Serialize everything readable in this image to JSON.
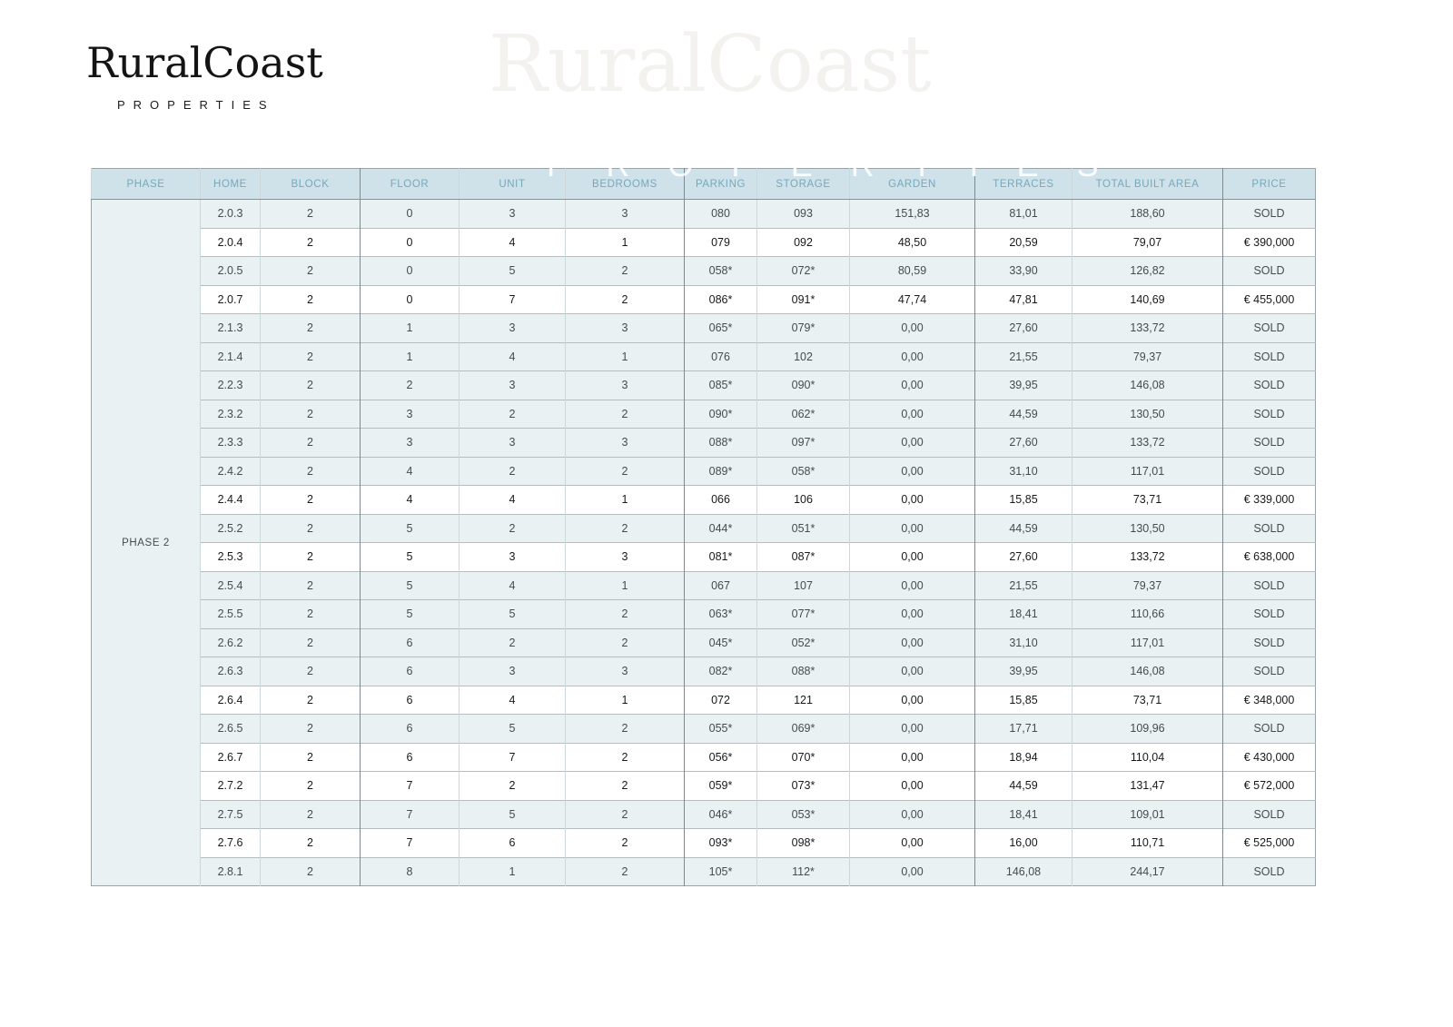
{
  "logo": {
    "name": "RuralCoast",
    "tagline": "PROPERTIES"
  },
  "watermark": {
    "name": "RuralCoast",
    "tagline": "PROPERTIES"
  },
  "colors": {
    "header_bg": "#cfe1e9",
    "header_text": "#74a9bd",
    "sold_row_bg": "#e9f1f3",
    "available_row_bg": "#ffffff",
    "accent_teal": "#7cb2c1"
  },
  "table": {
    "phase_label": "PHASE 2",
    "columns": [
      "PHASE",
      "HOME",
      "BLOCK",
      "FLOOR",
      "UNIT",
      "BEDROOMS",
      "PARKING",
      "STORAGE",
      "GARDEN",
      "TERRACES",
      "TOTAL BUILT AREA",
      "PRICE"
    ],
    "rows": [
      {
        "home": "2.0.3",
        "block": "2",
        "floor": "0",
        "unit": "3",
        "bedrooms": "3",
        "parking": "080",
        "storage": "093",
        "garden": "151,83",
        "terraces": "81,01",
        "total_built_area": "188,60",
        "price": "SOLD"
      },
      {
        "home": "2.0.4",
        "block": "2",
        "floor": "0",
        "unit": "4",
        "bedrooms": "1",
        "parking": "079",
        "storage": "092",
        "garden": "48,50",
        "terraces": "20,59",
        "total_built_area": "79,07",
        "price": "€ 390,000"
      },
      {
        "home": "2.0.5",
        "block": "2",
        "floor": "0",
        "unit": "5",
        "bedrooms": "2",
        "parking": "058*",
        "storage": "072*",
        "garden": "80,59",
        "terraces": "33,90",
        "total_built_area": "126,82",
        "price": "SOLD"
      },
      {
        "home": "2.0.7",
        "block": "2",
        "floor": "0",
        "unit": "7",
        "bedrooms": "2",
        "parking": "086*",
        "storage": "091*",
        "garden": "47,74",
        "terraces": "47,81",
        "total_built_area": "140,69",
        "price": "€ 455,000"
      },
      {
        "home": "2.1.3",
        "block": "2",
        "floor": "1",
        "unit": "3",
        "bedrooms": "3",
        "parking": "065*",
        "storage": "079*",
        "garden": "0,00",
        "terraces": "27,60",
        "total_built_area": "133,72",
        "price": "SOLD"
      },
      {
        "home": "2.1.4",
        "block": "2",
        "floor": "1",
        "unit": "4",
        "bedrooms": "1",
        "parking": "076",
        "storage": "102",
        "garden": "0,00",
        "terraces": "21,55",
        "total_built_area": "79,37",
        "price": "SOLD"
      },
      {
        "home": "2.2.3",
        "block": "2",
        "floor": "2",
        "unit": "3",
        "bedrooms": "3",
        "parking": "085*",
        "storage": "090*",
        "garden": "0,00",
        "terraces": "39,95",
        "total_built_area": "146,08",
        "price": "SOLD"
      },
      {
        "home": "2.3.2",
        "block": "2",
        "floor": "3",
        "unit": "2",
        "bedrooms": "2",
        "parking": "090*",
        "storage": "062*",
        "garden": "0,00",
        "terraces": "44,59",
        "total_built_area": "130,50",
        "price": "SOLD"
      },
      {
        "home": "2.3.3",
        "block": "2",
        "floor": "3",
        "unit": "3",
        "bedrooms": "3",
        "parking": "088*",
        "storage": "097*",
        "garden": "0,00",
        "terraces": "27,60",
        "total_built_area": "133,72",
        "price": "SOLD"
      },
      {
        "home": "2.4.2",
        "block": "2",
        "floor": "4",
        "unit": "2",
        "bedrooms": "2",
        "parking": "089*",
        "storage": "058*",
        "garden": "0,00",
        "terraces": "31,10",
        "total_built_area": "117,01",
        "price": "SOLD"
      },
      {
        "home": "2.4.4",
        "block": "2",
        "floor": "4",
        "unit": "4",
        "bedrooms": "1",
        "parking": "066",
        "storage": "106",
        "garden": "0,00",
        "terraces": "15,85",
        "total_built_area": "73,71",
        "price": "€ 339,000"
      },
      {
        "home": "2.5.2",
        "block": "2",
        "floor": "5",
        "unit": "2",
        "bedrooms": "2",
        "parking": "044*",
        "storage": "051*",
        "garden": "0,00",
        "terraces": "44,59",
        "total_built_area": "130,50",
        "price": "SOLD"
      },
      {
        "home": "2.5.3",
        "block": "2",
        "floor": "5",
        "unit": "3",
        "bedrooms": "3",
        "parking": "081*",
        "storage": "087*",
        "garden": "0,00",
        "terraces": "27,60",
        "total_built_area": "133,72",
        "price": "€ 638,000"
      },
      {
        "home": "2.5.4",
        "block": "2",
        "floor": "5",
        "unit": "4",
        "bedrooms": "1",
        "parking": "067",
        "storage": "107",
        "garden": "0,00",
        "terraces": "21,55",
        "total_built_area": "79,37",
        "price": "SOLD"
      },
      {
        "home": "2.5.5",
        "block": "2",
        "floor": "5",
        "unit": "5",
        "bedrooms": "2",
        "parking": "063*",
        "storage": "077*",
        "garden": "0,00",
        "terraces": "18,41",
        "total_built_area": "110,66",
        "price": "SOLD"
      },
      {
        "home": "2.6.2",
        "block": "2",
        "floor": "6",
        "unit": "2",
        "bedrooms": "2",
        "parking": "045*",
        "storage": "052*",
        "garden": "0,00",
        "terraces": "31,10",
        "total_built_area": "117,01",
        "price": "SOLD"
      },
      {
        "home": "2.6.3",
        "block": "2",
        "floor": "6",
        "unit": "3",
        "bedrooms": "3",
        "parking": "082*",
        "storage": "088*",
        "garden": "0,00",
        "terraces": "39,95",
        "total_built_area": "146,08",
        "price": "SOLD"
      },
      {
        "home": "2.6.4",
        "block": "2",
        "floor": "6",
        "unit": "4",
        "bedrooms": "1",
        "parking": "072",
        "storage": "121",
        "garden": "0,00",
        "terraces": "15,85",
        "total_built_area": "73,71",
        "price": "€ 348,000"
      },
      {
        "home": "2.6.5",
        "block": "2",
        "floor": "6",
        "unit": "5",
        "bedrooms": "2",
        "parking": "055*",
        "storage": "069*",
        "garden": "0,00",
        "terraces": "17,71",
        "total_built_area": "109,96",
        "price": "SOLD"
      },
      {
        "home": "2.6.7",
        "block": "2",
        "floor": "6",
        "unit": "7",
        "bedrooms": "2",
        "parking": "056*",
        "storage": "070*",
        "garden": "0,00",
        "terraces": "18,94",
        "total_built_area": "110,04",
        "price": "€ 430,000"
      },
      {
        "home": "2.7.2",
        "block": "2",
        "floor": "7",
        "unit": "2",
        "bedrooms": "2",
        "parking": "059*",
        "storage": "073*",
        "garden": "0,00",
        "terraces": "44,59",
        "total_built_area": "131,47",
        "price": "€ 572,000"
      },
      {
        "home": "2.7.5",
        "block": "2",
        "floor": "7",
        "unit": "5",
        "bedrooms": "2",
        "parking": "046*",
        "storage": "053*",
        "garden": "0,00",
        "terraces": "18,41",
        "total_built_area": "109,01",
        "price": "SOLD"
      },
      {
        "home": "2.7.6",
        "block": "2",
        "floor": "7",
        "unit": "6",
        "bedrooms": "2",
        "parking": "093*",
        "storage": "098*",
        "garden": "0,00",
        "terraces": "16,00",
        "total_built_area": "110,71",
        "price": "€ 525,000"
      },
      {
        "home": "2.8.1",
        "block": "2",
        "floor": "8",
        "unit": "1",
        "bedrooms": "2",
        "parking": "105*",
        "storage": "112*",
        "garden": "0,00",
        "terraces": "146,08",
        "total_built_area": "244,17",
        "price": "SOLD"
      }
    ]
  }
}
